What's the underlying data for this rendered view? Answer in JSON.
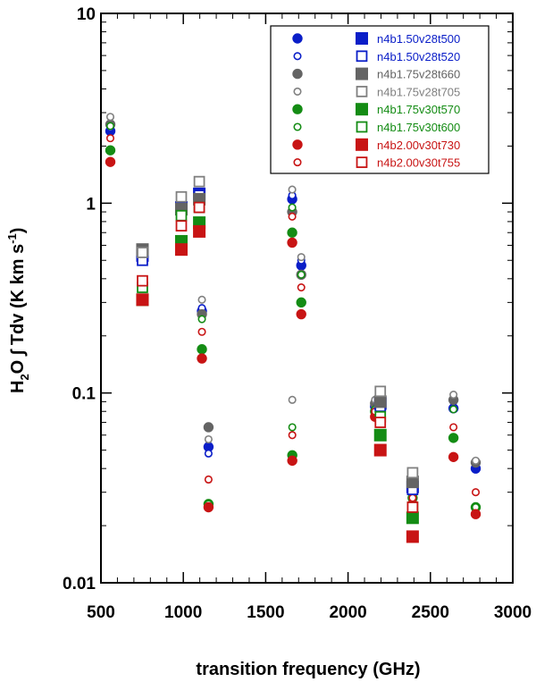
{
  "chart_data": {
    "type": "scatter",
    "title": "",
    "xlabel": "transition frequency (GHz)",
    "ylabel": {
      "main": "H",
      "sub": "2",
      "mid": "O ∫ Tdv (K km s",
      "sup": "-1",
      "end": ")"
    },
    "xscale": "linear",
    "yscale": "log",
    "xlim": [
      500,
      3000
    ],
    "ylim": [
      0.01,
      10
    ],
    "x_tick_labels": [
      "500",
      "1000",
      "1500",
      "2000",
      "2500",
      "3000"
    ],
    "x_ticks": [
      500,
      1000,
      1500,
      2000,
      2500,
      3000
    ],
    "y_tick_labels": [
      "0.01",
      "0.1",
      "1",
      "10"
    ],
    "y_ticks": [
      0.01,
      0.1,
      1,
      10
    ],
    "legend_position": "top-right",
    "series": [
      {
        "name": "n4b1.50v28t500 (circle)",
        "label": "",
        "marker": "circle-filled",
        "color": "#0a1ec8",
        "points": [
          [
            557,
            2.4
          ],
          [
            1113,
            0.27
          ],
          [
            1153,
            0.052
          ],
          [
            1661,
            1.05
          ],
          [
            1716,
            0.47
          ],
          [
            2164,
            0.085
          ],
          [
            2392,
            0.03
          ],
          [
            2640,
            0.083
          ],
          [
            2775,
            0.04
          ]
        ]
      },
      {
        "name": "n4b1.50v28t520 (circle)",
        "label": "",
        "marker": "circle-open",
        "color": "#0a1ec8",
        "points": [
          [
            557,
            2.5
          ],
          [
            1113,
            0.28
          ],
          [
            1153,
            0.048
          ],
          [
            1661,
            1.1
          ],
          [
            1716,
            0.5
          ],
          [
            2164,
            0.09
          ],
          [
            2392,
            0.032
          ],
          [
            2640,
            0.09
          ],
          [
            2775,
            0.042
          ]
        ]
      },
      {
        "name": "n4b1.75v28t660 (circle)",
        "label": "",
        "marker": "circle-filled",
        "color": "#646464",
        "points": [
          [
            557,
            2.6
          ],
          [
            1113,
            0.26
          ],
          [
            1153,
            0.066
          ],
          [
            1661,
            0.9
          ],
          [
            1716,
            0.42
          ],
          [
            2164,
            0.088
          ],
          [
            2392,
            0.033
          ],
          [
            2640,
            0.092
          ],
          [
            2775,
            0.043
          ]
        ]
      },
      {
        "name": "n4b1.75v28t705 (circle)",
        "label": "",
        "marker": "circle-open",
        "color": "#808080",
        "points": [
          [
            557,
            2.85
          ],
          [
            1113,
            0.31
          ],
          [
            1153,
            0.057
          ],
          [
            1661,
            1.18
          ],
          [
            1716,
            0.52
          ],
          [
            1661.5,
            0.092
          ],
          [
            2164,
            0.092
          ],
          [
            2392,
            0.035
          ],
          [
            2640,
            0.098
          ],
          [
            2775,
            0.044
          ]
        ]
      },
      {
        "name": "n4b1.75v30t570 (circle)",
        "label": "",
        "marker": "circle-filled",
        "color": "#148c14",
        "points": [
          [
            557,
            1.9
          ],
          [
            1113,
            0.17
          ],
          [
            1153,
            0.026
          ],
          [
            1661,
            0.7
          ],
          [
            1716,
            0.3
          ],
          [
            1661.5,
            0.047
          ],
          [
            2164,
            0.08
          ],
          [
            2392,
            0.028
          ],
          [
            2640,
            0.058
          ],
          [
            2775,
            0.025
          ]
        ]
      },
      {
        "name": "n4b1.75v30t600 (circle)",
        "label": "",
        "marker": "circle-open",
        "color": "#148c14",
        "points": [
          [
            557,
            2.55
          ],
          [
            1113,
            0.245
          ],
          [
            1153,
            0.026
          ],
          [
            1661,
            0.95
          ],
          [
            1716,
            0.42
          ],
          [
            1661.5,
            0.066
          ],
          [
            2164,
            0.082
          ],
          [
            2392,
            0.03
          ],
          [
            2640,
            0.082
          ],
          [
            2775,
            0.025
          ]
        ]
      },
      {
        "name": "n4b2.00v30t730 (circle)",
        "label": "",
        "marker": "circle-filled",
        "color": "#c81414",
        "points": [
          [
            557,
            1.65
          ],
          [
            1113,
            0.152
          ],
          [
            1153,
            0.025
          ],
          [
            1661,
            0.62
          ],
          [
            1716,
            0.26
          ],
          [
            1661.5,
            0.044
          ],
          [
            2164,
            0.075
          ],
          [
            2392,
            0.026
          ],
          [
            2640,
            0.046
          ],
          [
            2775,
            0.023
          ]
        ]
      },
      {
        "name": "n4b2.00v30t755 (circle)",
        "label": "",
        "marker": "circle-open",
        "color": "#c81414",
        "points": [
          [
            557,
            2.2
          ],
          [
            1113,
            0.21
          ],
          [
            1153,
            0.035
          ],
          [
            1661,
            0.85
          ],
          [
            1716,
            0.36
          ],
          [
            1661.5,
            0.06
          ],
          [
            2164,
            0.08
          ],
          [
            2392,
            0.028
          ],
          [
            2640,
            0.066
          ],
          [
            2775,
            0.03
          ]
        ]
      },
      {
        "name": "n4b1.50v28t500",
        "label": "n4b1.50v28t500",
        "marker": "square-filled",
        "color": "#0a1ec8",
        "points": [
          [
            752,
            0.53
          ],
          [
            988,
            0.95
          ],
          [
            1097,
            1.12
          ],
          [
            2196,
            0.088
          ],
          [
            2392,
            0.032
          ]
        ]
      },
      {
        "name": "n4b1.50v28t520",
        "label": "n4b1.50v28t520",
        "marker": "square-open",
        "color": "#0a1ec8",
        "points": [
          [
            752,
            0.5
          ],
          [
            988,
            0.92
          ],
          [
            1097,
            1.1
          ],
          [
            2196,
            0.085
          ],
          [
            2392,
            0.031
          ]
        ]
      },
      {
        "name": "n4b1.75v28t660",
        "label": "n4b1.75v28t660",
        "marker": "square-filled",
        "color": "#646464",
        "points": [
          [
            752,
            0.57
          ],
          [
            988,
            0.93
          ],
          [
            1097,
            1.05
          ],
          [
            2196,
            0.09
          ],
          [
            2392,
            0.034
          ]
        ]
      },
      {
        "name": "n4b1.75v28t705",
        "label": "n4b1.75v28t705",
        "marker": "square-open",
        "color": "#808080",
        "points": [
          [
            752,
            0.55
          ],
          [
            988,
            1.08
          ],
          [
            1097,
            1.3
          ],
          [
            2196,
            0.102
          ],
          [
            2392,
            0.038
          ]
        ]
      },
      {
        "name": "n4b1.75v30t570",
        "label": "n4b1.75v30t570",
        "marker": "square-filled",
        "color": "#148c14",
        "points": [
          [
            752,
            0.31
          ],
          [
            988,
            0.63
          ],
          [
            1097,
            0.79
          ],
          [
            2196,
            0.06
          ],
          [
            2392,
            0.022
          ]
        ]
      },
      {
        "name": "n4b1.75v30t600",
        "label": "n4b1.75v30t600",
        "marker": "square-open",
        "color": "#148c14",
        "points": [
          [
            752,
            0.36
          ],
          [
            988,
            0.86
          ],
          [
            1097,
            0.95
          ],
          [
            2196,
            0.075
          ],
          [
            2392,
            0.025
          ]
        ]
      },
      {
        "name": "n4b2.00v30t730",
        "label": "n4b2.00v30t730",
        "marker": "square-filled",
        "color": "#c81414",
        "points": [
          [
            752,
            0.31
          ],
          [
            988,
            0.57
          ],
          [
            1097,
            0.71
          ],
          [
            2196,
            0.05
          ],
          [
            2392,
            0.0175
          ]
        ]
      },
      {
        "name": "n4b2.00v30t755",
        "label": "n4b2.00v30t755",
        "marker": "square-open",
        "color": "#c81414",
        "points": [
          [
            752,
            0.39
          ],
          [
            988,
            0.76
          ],
          [
            1097,
            0.95
          ],
          [
            2196,
            0.07
          ],
          [
            2392,
            0.025
          ]
        ]
      }
    ],
    "legend": [
      {
        "label": "n4b1.50v28t500",
        "circle": "filled",
        "square": "filled",
        "color": "#0a1ec8"
      },
      {
        "label": "n4b1.50v28t520",
        "circle": "open",
        "square": "open",
        "color": "#0a1ec8"
      },
      {
        "label": "n4b1.75v28t660",
        "circle": "filled",
        "square": "filled",
        "color": "#646464"
      },
      {
        "label": "n4b1.75v28t705",
        "circle": "open",
        "square": "open",
        "color": "#808080"
      },
      {
        "label": "n4b1.75v30t570",
        "circle": "filled",
        "square": "filled",
        "color": "#148c14"
      },
      {
        "label": "n4b1.75v30t600",
        "circle": "open",
        "square": "open",
        "color": "#148c14"
      },
      {
        "label": "n4b2.00v30t730",
        "circle": "filled",
        "square": "filled",
        "color": "#c81414"
      },
      {
        "label": "n4b2.00v30t755",
        "circle": "open",
        "square": "open",
        "color": "#c81414"
      }
    ]
  }
}
